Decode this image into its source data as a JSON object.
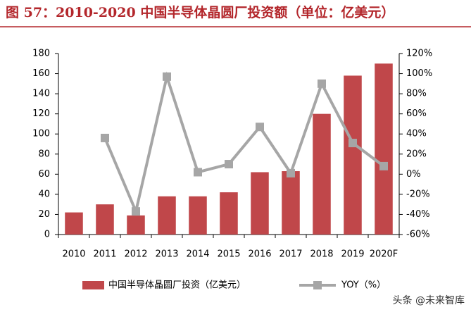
{
  "chart_data": {
    "type": "bar-line",
    "title": "图 57：2010-2020 中国半导体晶圆厂投资额（单位：亿美元）",
    "categories": [
      "2010",
      "2011",
      "2012",
      "2013",
      "2014",
      "2015",
      "2016",
      "2017",
      "2018",
      "2019",
      "2020F"
    ],
    "series": [
      {
        "name": "中国半导体晶圆厂投资（亿美元）",
        "type": "bar",
        "color": "#c0474a",
        "values": [
          22,
          30,
          19,
          38,
          38,
          42,
          62,
          63,
          120,
          158,
          170
        ]
      },
      {
        "name": "YOY（%）",
        "type": "line",
        "axis": "y2",
        "color": "#a6a6a6",
        "values": [
          null,
          36,
          -37,
          97,
          2,
          10,
          47,
          1,
          90,
          31,
          8
        ]
      }
    ],
    "ylim": [
      0,
      180
    ],
    "yticks": [
      0,
      20,
      40,
      60,
      80,
      100,
      120,
      140,
      160,
      180
    ],
    "y2lim": [
      -60,
      120
    ],
    "y2ticks": [
      {
        "value": -60,
        "label": "-60%"
      },
      {
        "value": -40,
        "label": "-40%"
      },
      {
        "value": -20,
        "label": "-20%"
      },
      {
        "value": 0,
        "label": "0%"
      },
      {
        "value": 20,
        "label": "20%"
      },
      {
        "value": 40,
        "label": "40%"
      },
      {
        "value": 60,
        "label": "60%"
      },
      {
        "value": 80,
        "label": "80%"
      },
      {
        "value": 100,
        "label": "100%"
      },
      {
        "value": 120,
        "label": "120%"
      }
    ],
    "legend": "bottom",
    "watermark": "头条 @未来智库"
  }
}
